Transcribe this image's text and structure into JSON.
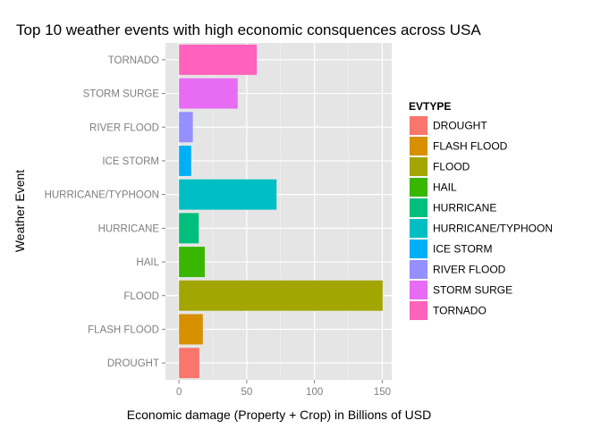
{
  "chart_data": {
    "type": "bar",
    "orientation": "horizontal",
    "title": "Top 10 weather events with high economic consquences across USA",
    "xlabel": "Economic damage (Property + Crop) in Billions of USD",
    "ylabel": "Weather Event",
    "xlim": [
      -10,
      157
    ],
    "xticks": [
      0,
      50,
      100,
      150
    ],
    "grid": true,
    "legend": {
      "title": "EVTYPE",
      "position": "right"
    },
    "categories": [
      "DROUGHT",
      "FLASH FLOOD",
      "FLOOD",
      "HAIL",
      "HURRICANE",
      "HURRICANE/TYPHOON",
      "ICE STORM",
      "RIVER FLOOD",
      "STORM SURGE",
      "TORNADO"
    ],
    "values": [
      15,
      17.6,
      150.3,
      19,
      14.6,
      72,
      9,
      10.2,
      43.3,
      57.4
    ],
    "colors": [
      "#F8766D",
      "#D89000",
      "#A3A500",
      "#39B600",
      "#00BF7D",
      "#00BFC4",
      "#00B0F6",
      "#9590FF",
      "#E76BF3",
      "#FF62BC"
    ]
  }
}
